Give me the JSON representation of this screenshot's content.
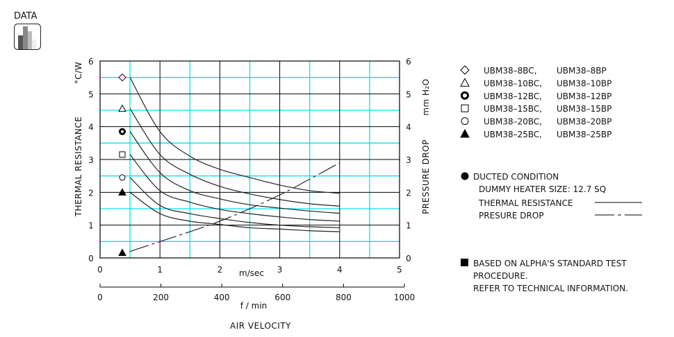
{
  "header": {
    "label": "DATA",
    "icon": "bar-chart-icon"
  },
  "chart_data": {
    "type": "line",
    "x_unit_label": "m/sec",
    "x2_unit_label": "f / min",
    "xlabel": "AIR VELOCITY",
    "ylabel": "THERMAL  RESISTANCE",
    "ylabel_unit": "°C/W",
    "y2label": "PRESSURE  DROP",
    "y2label_unit": "mm H₂O",
    "xlim": [
      0,
      5
    ],
    "x2lim": [
      0,
      1000
    ],
    "ylim": [
      0,
      6
    ],
    "y2lim": [
      0,
      6
    ],
    "xticks": [
      "0",
      "1",
      "2",
      "3",
      "4",
      "5"
    ],
    "x2ticks": [
      "0",
      "200",
      "400",
      "600",
      "800",
      "1000"
    ],
    "yticks": [
      "0",
      "1",
      "2",
      "3",
      "4",
      "5",
      "6"
    ],
    "y2ticks": [
      "0",
      "1",
      "2",
      "3",
      "4",
      "5",
      "6"
    ],
    "grid": true,
    "colors": {
      "major_grid": "#000000",
      "minor_grid": "#00e5ee",
      "curve": "#222222"
    },
    "x": [
      0.5,
      1,
      1.5,
      2,
      2.5,
      3,
      3.5,
      4
    ],
    "series": [
      {
        "marker": "diamond-open",
        "values": [
          5.5,
          3.85,
          3.1,
          2.7,
          2.45,
          2.22,
          2.05,
          1.97
        ]
      },
      {
        "marker": "triangle-open",
        "values": [
          4.55,
          3.15,
          2.55,
          2.18,
          1.95,
          1.78,
          1.65,
          1.58
        ]
      },
      {
        "marker": "circle-bold",
        "values": [
          3.85,
          2.6,
          2.05,
          1.8,
          1.62,
          1.52,
          1.43,
          1.36
        ]
      },
      {
        "marker": "square-open",
        "values": [
          3.15,
          2.05,
          1.7,
          1.48,
          1.35,
          1.25,
          1.17,
          1.12
        ]
      },
      {
        "marker": "circle-open",
        "values": [
          2.45,
          1.6,
          1.35,
          1.2,
          1.08,
          1.0,
          0.95,
          0.92
        ]
      },
      {
        "marker": "triangle-filled",
        "values": [
          2.0,
          1.35,
          1.12,
          1.02,
          0.92,
          0.88,
          0.83,
          0.8
        ]
      },
      {
        "marker": "triangle-filled",
        "dashed": true,
        "axis": "y2",
        "values": [
          0.2,
          0.5,
          0.8,
          1.12,
          1.5,
          1.92,
          2.4,
          2.9
        ]
      }
    ]
  },
  "legend": {
    "items": [
      {
        "marker": "diamond-open",
        "bc": "UBM38–8BC,",
        "bp": "UBM38–8BP"
      },
      {
        "marker": "triangle-open",
        "bc": "UBM38–10BC,",
        "bp": "UBM38–10BP"
      },
      {
        "marker": "circle-bold",
        "bc": "UBM38–12BC,",
        "bp": "UBM38–12BP"
      },
      {
        "marker": "square-open",
        "bc": "UBM38–15BC,",
        "bp": "UBM38–15BP"
      },
      {
        "marker": "circle-open",
        "bc": "UBM38–20BC,",
        "bp": "UBM38–20BP"
      },
      {
        "marker": "triangle-filled",
        "bc": "UBM38–25BC,",
        "bp": "UBM38–25BP"
      }
    ]
  },
  "conditions": {
    "title": "DUCTED CONDITION",
    "heater": "DUMMY HEATER SIZE:  12.7 SQ",
    "thermal": "THERMAL RESISTANCE",
    "pressure": "PRESURE DROP"
  },
  "note": {
    "line1": "BASED ON ALPHA'S STANDARD TEST",
    "line2": "PROCEDURE.",
    "line3": "REFER TO TECHNICAL INFORMATION."
  }
}
